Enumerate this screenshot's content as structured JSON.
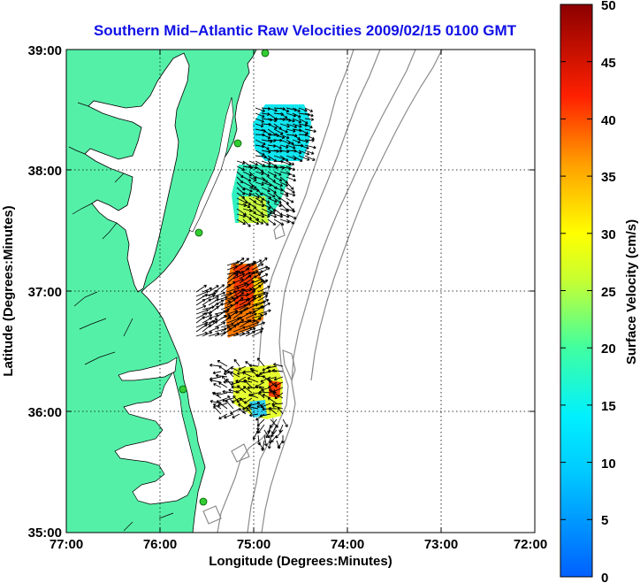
{
  "map": {
    "title": "Southern Mid–Atlantic Raw Velocities 2009/02/15 0100 GMT",
    "xlabel": "Longitude (Degrees:Minutes)",
    "ylabel": "Latitude (Degrees:Minutes)",
    "x_ticks": [
      "77:00",
      "76:00",
      "75:00",
      "74:00",
      "73:00",
      "72:00"
    ],
    "y_ticks": [
      "39:00",
      "38:00",
      "37:00",
      "36:00",
      "35:00"
    ],
    "land_color": "#55f0a8",
    "water_color": "#ffffff",
    "bathymetry_color": "#8c8c8c",
    "station_marker_color": "#33cc33"
  },
  "colorbar": {
    "label": "Surface Velocity (cm/s)",
    "ticks": [
      "50",
      "45",
      "40",
      "35",
      "30",
      "25",
      "20",
      "15",
      "10",
      "5",
      "0"
    ],
    "range": [
      0,
      50
    ]
  }
}
